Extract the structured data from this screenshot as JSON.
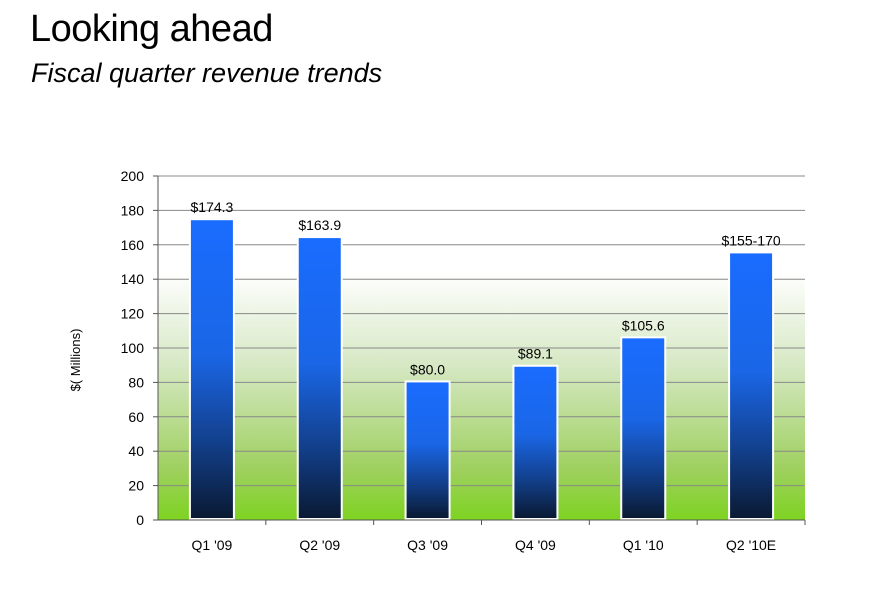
{
  "header": {
    "title": "Looking ahead",
    "subtitle": "Fiscal quarter revenue trends"
  },
  "colors": {
    "bar_top": "#1a6cff",
    "bar_bottom": "#0a1a33",
    "plot_green": "#7ed321",
    "grid": "#888888"
  },
  "chart_data": {
    "type": "bar",
    "categories": [
      "Q1 '09",
      "Q2 '09",
      "Q3 '09",
      "Q4 '09",
      "Q1 '10",
      "Q2 '10E"
    ],
    "values": [
      174.3,
      163.9,
      80.0,
      89.1,
      105.6,
      155
    ],
    "data_labels": [
      "$174.3",
      "$163.9",
      "$80.0",
      "$89.1",
      "$105.6",
      "$155-170"
    ],
    "ylabel": "$( Millions)",
    "xlabel": "",
    "ylim": [
      0,
      200
    ],
    "yticks": [
      0,
      20,
      40,
      60,
      80,
      100,
      120,
      140,
      160,
      180,
      200
    ],
    "grid": true,
    "legend": "none"
  }
}
